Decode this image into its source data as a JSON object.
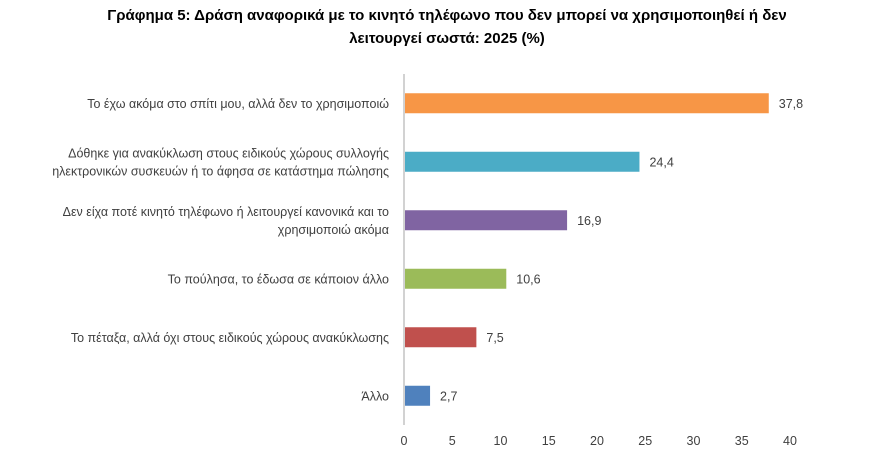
{
  "title": {
    "line1": "Γράφημα 5: Δράση αναφορικά με το κινητό τηλέφωνο που δεν μπορεί να χρησιμοποιηθεί ή δεν",
    "line2": "λειτουργεί σωστά: 2025 (%)"
  },
  "chart_data": {
    "type": "bar",
    "orientation": "horizontal",
    "categories": [
      [
        "Το έχω ακόμα στο σπίτι μου, αλλά δεν το χρησιμοποιώ"
      ],
      [
        "Δόθηκε για ανακύκλωση στους ειδικούς χώρους συλλογής",
        "ηλεκτρονικών συσκευών ή το άφησα σε κατάστημα πώλησης"
      ],
      [
        "Δεν είχα ποτέ κινητό τηλέφωνο ή λειτουργεί κανονικά και το",
        "χρησιμοποιώ ακόμα"
      ],
      [
        "Το πούλησα, το έδωσα σε κάποιον άλλο"
      ],
      [
        "Το πέταξα, αλλά όχι στους ειδικούς χώρους ανακύκλωσης"
      ],
      [
        "Άλλο"
      ]
    ],
    "values": [
      37.8,
      24.4,
      16.9,
      10.6,
      7.5,
      2.7
    ],
    "value_labels": [
      "37,8",
      "24,4",
      "16,9",
      "10,6",
      "7,5",
      "2,7"
    ],
    "colors": [
      "#F79646",
      "#4BACC6",
      "#8064A2",
      "#9BBB59",
      "#C0504D",
      "#4F81BD"
    ],
    "xlim": [
      0,
      40
    ],
    "xticks": [
      0,
      5,
      10,
      15,
      20,
      25,
      30,
      35,
      40
    ],
    "grid": false
  }
}
